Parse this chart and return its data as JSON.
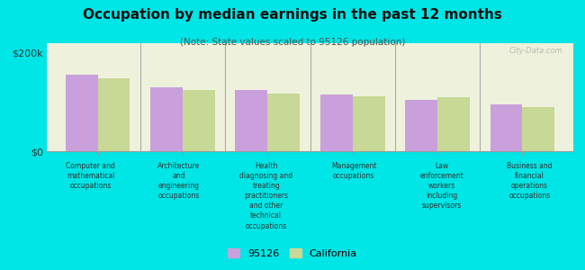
{
  "title": "Occupation by median earnings in the past 12 months",
  "subtitle": "(Note: State values scaled to 95126 population)",
  "background_color": "#00e5e5",
  "plot_bg_color": "#eef2dc",
  "categories": [
    "Computer and\nmathematical\noccupations",
    "Architecture\nand\nengineering\noccupations",
    "Health\ndiagnosing and\ntreating\npractitioners\nand other\ntechnical\noccupations",
    "Management\noccupations",
    "Law\nenforcement\nworkers\nincluding\nsupervisors",
    "Business and\nfinancial\noperations\noccupations"
  ],
  "values_95126": [
    155000,
    130000,
    125000,
    115000,
    105000,
    95000
  ],
  "values_california": [
    148000,
    125000,
    118000,
    112000,
    110000,
    90000
  ],
  "color_95126": "#c9a0dc",
  "color_california": "#c8d896",
  "legend_95126": "95126",
  "legend_california": "California",
  "watermark": "City-Data.com",
  "ylim": [
    0,
    220000
  ],
  "ytick_vals": [
    0,
    200000
  ],
  "ytick_labels": [
    "$0",
    "$200k"
  ]
}
